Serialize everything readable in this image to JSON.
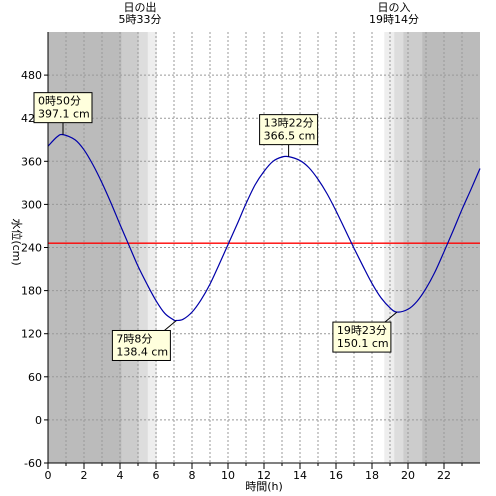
{
  "chart_data": {
    "type": "line",
    "title": "",
    "xlabel": "時間(h)",
    "ylabel": "水位(cm)",
    "xlim": [
      0,
      24
    ],
    "ylim": [
      -60,
      540
    ],
    "x_ticks": [
      "0",
      "2",
      "4",
      "6",
      "8",
      "10",
      "12",
      "14",
      "16",
      "18",
      "20",
      "22"
    ],
    "y_ticks": [
      "-60",
      "0",
      "60",
      "120",
      "180",
      "240",
      "300",
      "360",
      "420",
      "480"
    ],
    "reference_line": {
      "value": 246,
      "color": "#ff0000"
    },
    "series": [
      {
        "color": "#0000aa",
        "x": [
          0,
          0.5,
          0.833,
          1.5,
          2,
          2.5,
          3,
          3.5,
          4,
          4.5,
          5,
          5.5,
          6,
          6.5,
          7,
          7.133,
          7.5,
          8,
          8.5,
          9,
          9.5,
          10,
          10.5,
          11,
          11.5,
          12,
          12.5,
          13,
          13.367,
          14,
          14.5,
          15,
          15.5,
          16,
          16.5,
          17,
          17.5,
          18,
          18.5,
          19,
          19.383,
          20,
          20.5,
          21,
          21.5,
          22,
          22.5,
          23,
          23.5,
          24
        ],
        "y": [
          381,
          394,
          397.1,
          390,
          376,
          355,
          330,
          302,
          272,
          243,
          214,
          189,
          166,
          148,
          139,
          138.4,
          140,
          150,
          167,
          189,
          216,
          244,
          272,
          301,
          327,
          346,
          360,
          366,
          366.5,
          361,
          351,
          335,
          315,
          291,
          265,
          239,
          214,
          190,
          170,
          156,
          150.1,
          154,
          165,
          183,
          206,
          234,
          263,
          293,
          321,
          350
        ]
      }
    ],
    "sunrise": {
      "label_line1": "日の出",
      "label_line2": "5時33分",
      "hour": 5.55
    },
    "sunset": {
      "label_line1": "日の入",
      "label_line2": "19時14分",
      "hour": 19.233
    },
    "annotations": [
      {
        "time": "0時50分",
        "level": "397.1 cm",
        "x": 0.833,
        "y": 397.1,
        "kind": "high"
      },
      {
        "time": "7時8分",
        "level": "138.4 cm",
        "x": 7.133,
        "y": 138.4,
        "kind": "low"
      },
      {
        "time": "13時22分",
        "level": "366.5 cm",
        "x": 13.367,
        "y": 366.5,
        "kind": "high"
      },
      {
        "time": "19時23分",
        "level": "150.1 cm",
        "x": 19.383,
        "y": 150.1,
        "kind": "low"
      }
    ],
    "grid": true,
    "colors": {
      "night": "#bbbbbb",
      "twilight_dark": "#cccccc",
      "twilight_mid": "#dddddd",
      "twilight_light": "#eeeeee",
      "day": "#ffffff",
      "grid": "#999999",
      "annotation_bg": "#ffffdd"
    }
  }
}
